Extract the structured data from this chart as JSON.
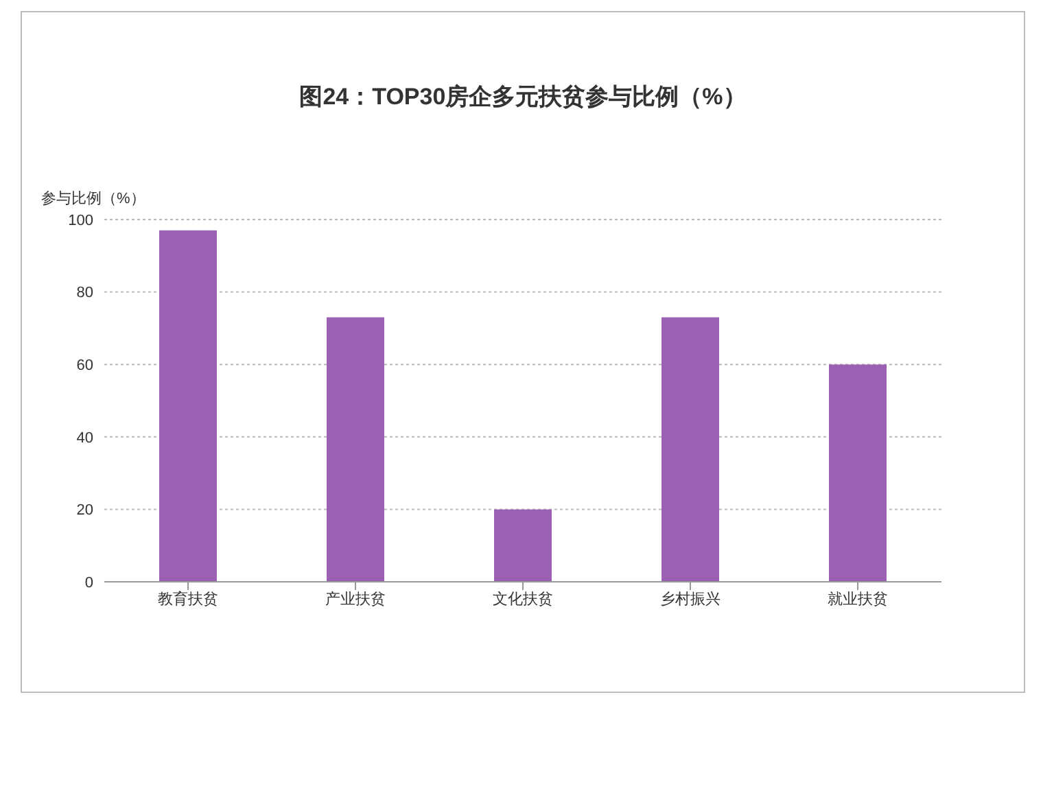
{
  "chart_data": {
    "type": "bar",
    "title": "图24：TOP30房企多元扶贫参与比例（%）",
    "ylabel": "参与比例（%）",
    "categories": [
      "教育扶贫",
      "产业扶贫",
      "文化扶贫",
      "乡村振兴",
      "就业扶贫"
    ],
    "values": [
      97,
      73,
      20,
      73,
      60
    ],
    "color": "#9b5fb4",
    "ylim": [
      0,
      100
    ],
    "yticks": [
      0,
      20,
      40,
      60,
      80,
      100
    ],
    "grid": "y"
  }
}
